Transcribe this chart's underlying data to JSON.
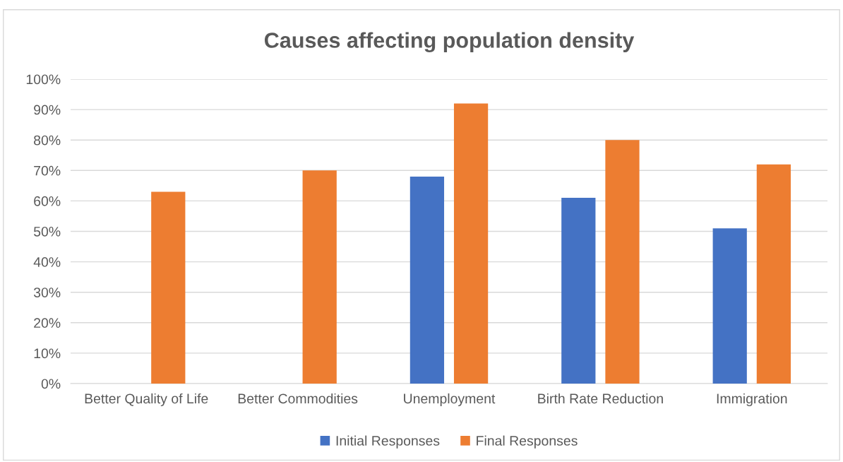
{
  "chart_data": {
    "type": "bar",
    "title": "Causes affecting population density",
    "categories": [
      "Better Quality of Life",
      "Better Commodities",
      "Unemployment",
      "Birth Rate Reduction",
      "Immigration"
    ],
    "series": [
      {
        "name": "Initial Responses",
        "color": "#4472c4",
        "values": [
          null,
          null,
          68,
          61,
          51
        ]
      },
      {
        "name": "Final Responses",
        "color": "#ed7d31",
        "values": [
          63,
          70,
          92,
          80,
          72
        ]
      }
    ],
    "ylim": [
      0,
      100
    ],
    "yticks": [
      {
        "value": 0,
        "label": "0%"
      },
      {
        "value": 10,
        "label": "10%"
      },
      {
        "value": 20,
        "label": "20%"
      },
      {
        "value": 30,
        "label": "30%"
      },
      {
        "value": 40,
        "label": "40%"
      },
      {
        "value": 50,
        "label": "50%"
      },
      {
        "value": 60,
        "label": "60%"
      },
      {
        "value": 70,
        "label": "70%"
      },
      {
        "value": 80,
        "label": "80%"
      },
      {
        "value": 90,
        "label": "90%"
      },
      {
        "value": 100,
        "label": "100%"
      }
    ],
    "grid": "y",
    "legend": "bottom"
  }
}
